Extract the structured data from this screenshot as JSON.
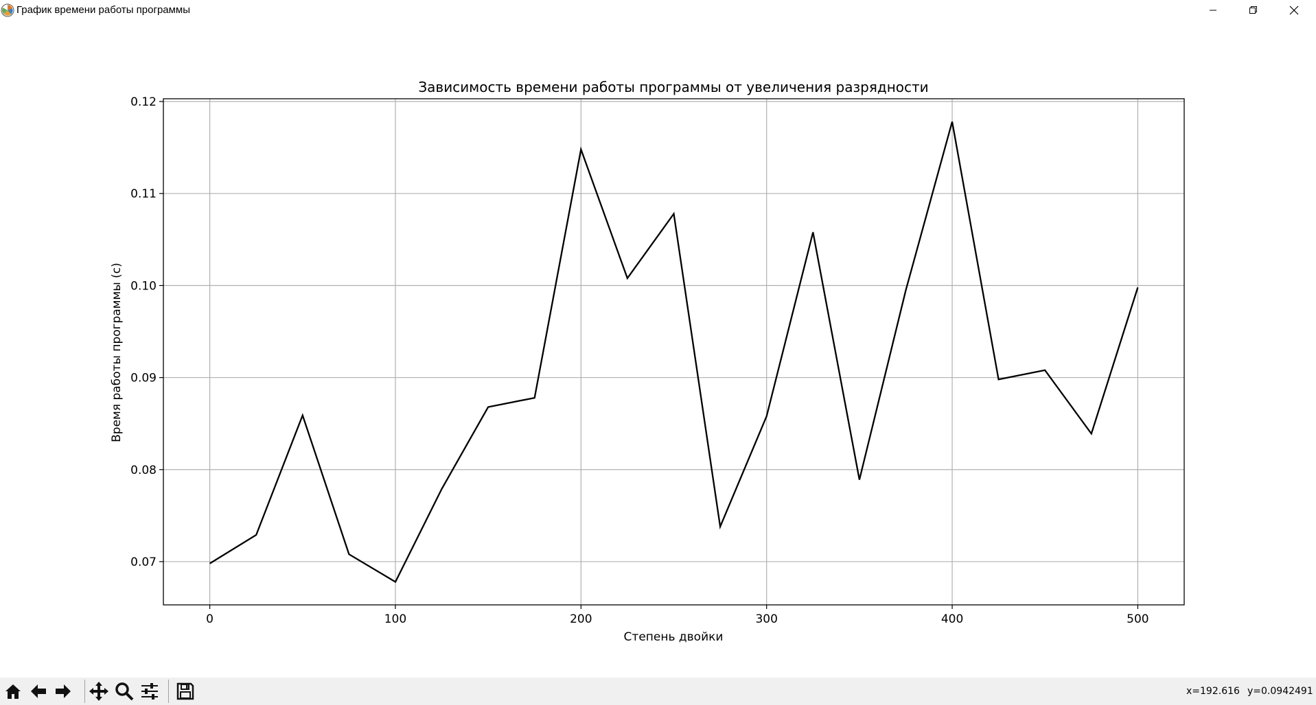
{
  "window": {
    "title": "График времени работы программы",
    "icon": "matplotlib-logo-icon",
    "controls": [
      "minimize-icon",
      "restore-icon",
      "close-icon"
    ]
  },
  "toolbar": {
    "buttons": [
      "home-icon",
      "back-arrow-icon",
      "forward-arrow-icon",
      "pan-move-icon",
      "zoom-magnifier-icon",
      "configure-subplots-icon",
      "save-disk-icon"
    ],
    "coords_x": "x=192.616",
    "coords_y": "y=0.0942491"
  },
  "chart_data": {
    "type": "line",
    "title": "Зависимость времени работы программы от увеличения разрядности",
    "xlabel": "Степень двойки",
    "ylabel": "Время работы программы (с)",
    "x": [
      0,
      25,
      50,
      75,
      100,
      125,
      150,
      175,
      200,
      225,
      250,
      275,
      300,
      325,
      350,
      375,
      400,
      425,
      450,
      475,
      500
    ],
    "series": [
      {
        "values": [
          0.0698,
          0.0729,
          0.0859,
          0.0708,
          0.0678,
          0.0779,
          0.0868,
          0.0878,
          0.1148,
          0.1008,
          0.1078,
          0.0738,
          0.0858,
          0.1058,
          0.0789,
          0.0995,
          0.1178,
          0.0898,
          0.0908,
          0.0839,
          0.0998
        ],
        "color": "#000000"
      }
    ],
    "xlim": [
      -25,
      525
    ],
    "ylim": [
      0.0653,
      0.1203
    ],
    "xticks": [
      0,
      100,
      200,
      300,
      400,
      500
    ],
    "xtick_labels": [
      "0",
      "100",
      "200",
      "300",
      "400",
      "500"
    ],
    "yticks": [
      0.07,
      0.08,
      0.09,
      0.1,
      0.11,
      0.12
    ],
    "ytick_labels": [
      "0.07",
      "0.08",
      "0.09",
      "0.10",
      "0.11",
      "0.12"
    ],
    "grid": true,
    "grid_color": "#b0b0b0"
  }
}
